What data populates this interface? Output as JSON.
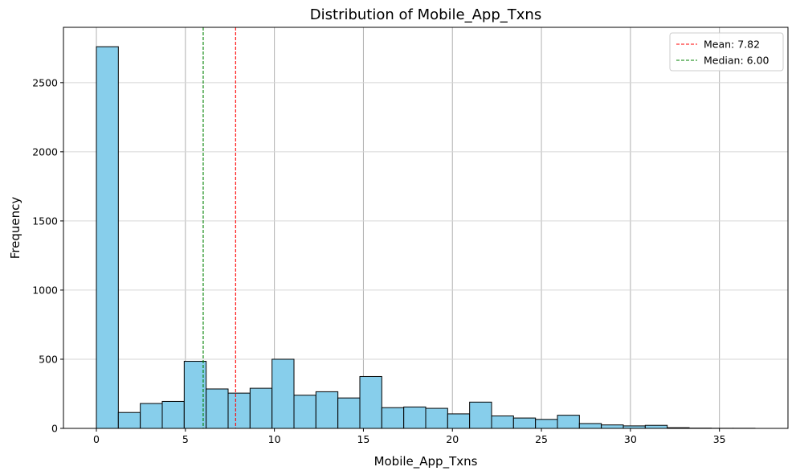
{
  "chart_data": {
    "type": "bar",
    "title": "Distribution of Mobile_App_Txns",
    "xlabel": "Mobile_App_Txns",
    "ylabel": "Frequency",
    "xlim": [
      -1.85,
      38.85
    ],
    "ylim": [
      0,
      2900
    ],
    "x_ticks": [
      0,
      5,
      10,
      15,
      20,
      25,
      30,
      35
    ],
    "y_ticks": [
      0,
      500,
      1000,
      1500,
      2000,
      2500
    ],
    "grid": true,
    "legend_placement": "top-right",
    "bin_edges": [
      0,
      1.233,
      2.467,
      3.7,
      4.933,
      6.167,
      7.4,
      8.633,
      9.867,
      11.1,
      12.333,
      13.567,
      14.8,
      16.033,
      17.267,
      18.5,
      19.733,
      20.967,
      22.2,
      23.433,
      24.667,
      25.9,
      27.133,
      28.367,
      29.6,
      30.833,
      32.067,
      33.3,
      34.533,
      35.767,
      37.0
    ],
    "counts": [
      2760,
      115,
      180,
      195,
      485,
      285,
      255,
      290,
      500,
      240,
      265,
      220,
      375,
      150,
      155,
      145,
      105,
      190,
      90,
      75,
      65,
      95,
      35,
      25,
      18,
      22,
      5,
      2,
      1,
      1
    ],
    "bar_color": "#87ceeb",
    "bar_edge_color": "#000000",
    "reference_lines": [
      {
        "label": "Mean: 7.82",
        "value": 7.82,
        "color": "#ff0000",
        "style": "dashed"
      },
      {
        "label": "Median: 6.00",
        "value": 6.0,
        "color": "#008000",
        "style": "dashed"
      }
    ]
  }
}
